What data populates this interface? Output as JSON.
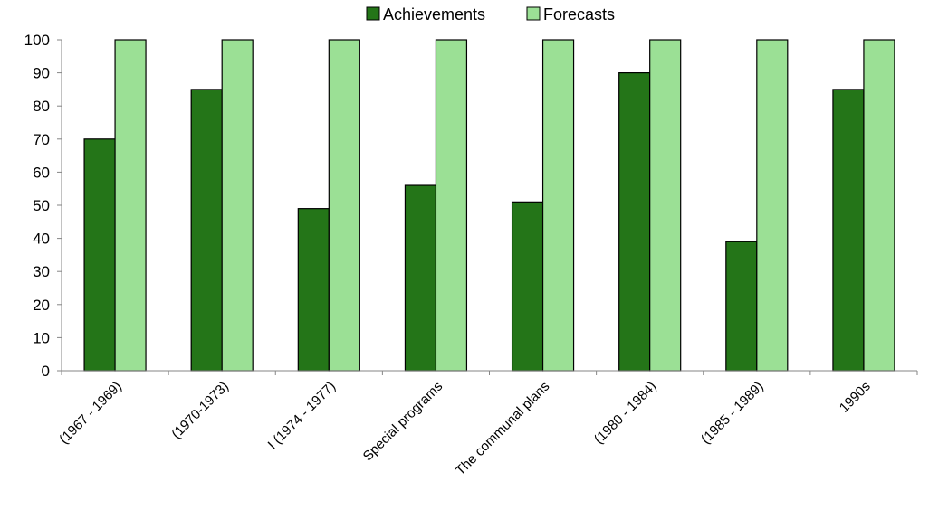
{
  "chart_data": {
    "type": "bar",
    "categories": [
      "(1967 - 1969)",
      "(1970-1973)",
      "I (1974 - 1977)",
      "Special programs",
      "The communal plans",
      "(1980 - 1984)",
      "(1985 - 1989)",
      "1990s"
    ],
    "series": [
      {
        "name": "Achievements",
        "values": [
          70,
          85,
          49,
          56,
          51,
          90,
          39,
          85
        ],
        "color": "#247518"
      },
      {
        "name": "Forecasts",
        "values": [
          100,
          100,
          100,
          100,
          100,
          100,
          100,
          100
        ],
        "color": "#9be095"
      }
    ],
    "ylim": [
      0,
      100
    ],
    "yticks": [
      0,
      10,
      20,
      30,
      40,
      50,
      60,
      70,
      80,
      90,
      100
    ],
    "legend": {
      "position": "top"
    }
  }
}
